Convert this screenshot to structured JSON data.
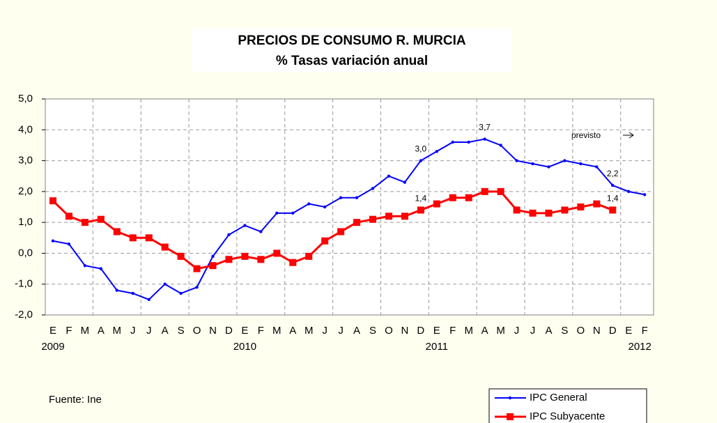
{
  "chart_data": {
    "type": "line",
    "title": "PRECIOS DE CONSUMO R. MURCIA",
    "subtitle": "% Tasas variación anual",
    "categories": [
      "E",
      "F",
      "M",
      "A",
      "M",
      "J",
      "J",
      "A",
      "S",
      "O",
      "N",
      "D",
      "E",
      "F",
      "M",
      "A",
      "M",
      "J",
      "J",
      "A",
      "S",
      "O",
      "N",
      "D",
      "E",
      "F",
      "M",
      "A",
      "M",
      "J",
      "J",
      "A",
      "S",
      "O",
      "N",
      "D",
      "E",
      "F"
    ],
    "category_years": [
      "2009",
      null,
      null,
      null,
      null,
      null,
      null,
      null,
      null,
      null,
      null,
      null,
      "2010",
      null,
      null,
      null,
      null,
      null,
      null,
      null,
      null,
      null,
      null,
      null,
      "2011",
      null,
      null,
      null,
      null,
      null,
      null,
      null,
      null,
      null,
      null,
      null,
      "2012",
      null
    ],
    "series": [
      {
        "name": "IPC General",
        "color": "#0000ff",
        "marker": "dot",
        "values": [
          0.4,
          0.3,
          -0.4,
          -0.5,
          -1.2,
          -1.3,
          -1.5,
          -1.0,
          -1.3,
          -1.1,
          -0.1,
          0.6,
          0.9,
          0.7,
          1.3,
          1.3,
          1.6,
          1.5,
          1.8,
          1.8,
          2.1,
          2.5,
          2.3,
          3.0,
          3.3,
          3.6,
          3.6,
          3.7,
          3.5,
          3.0,
          2.9,
          2.8,
          3.0,
          2.9,
          2.8,
          2.2,
          2.0,
          1.9
        ],
        "value_labels": [
          null,
          null,
          null,
          null,
          null,
          null,
          null,
          null,
          null,
          null,
          null,
          null,
          null,
          null,
          null,
          null,
          null,
          null,
          null,
          null,
          null,
          null,
          null,
          "3,0",
          null,
          null,
          null,
          "3,7",
          null,
          null,
          null,
          null,
          null,
          null,
          null,
          "2,2",
          null,
          null
        ]
      },
      {
        "name": "IPC Subyacente",
        "color": "#ff0000",
        "marker": "square",
        "values": [
          1.7,
          1.2,
          1.0,
          1.1,
          0.7,
          0.5,
          0.5,
          0.2,
          -0.1,
          -0.5,
          -0.4,
          -0.2,
          -0.1,
          -0.2,
          0.0,
          -0.3,
          -0.1,
          0.4,
          0.7,
          1.0,
          1.1,
          1.2,
          1.2,
          1.4,
          1.6,
          1.8,
          1.8,
          2.0,
          2.0,
          1.4,
          1.3,
          1.3,
          1.4,
          1.5,
          1.6,
          1.4,
          null,
          null
        ],
        "value_labels": [
          null,
          null,
          null,
          null,
          null,
          null,
          null,
          null,
          null,
          null,
          null,
          null,
          null,
          null,
          null,
          null,
          null,
          null,
          null,
          null,
          null,
          null,
          null,
          "1,4",
          null,
          null,
          null,
          null,
          null,
          null,
          null,
          null,
          null,
          null,
          null,
          "1,4",
          null,
          null
        ]
      }
    ],
    "annotation": "previsto",
    "source": "Fuente: Ine",
    "ylim": [
      -2,
      5
    ],
    "yticks": [
      {
        "value": -2,
        "label": "-2,0"
      },
      {
        "value": -1,
        "label": "-1,0"
      },
      {
        "value": 0,
        "label": "0,0"
      },
      {
        "value": 1,
        "label": "1,0"
      },
      {
        "value": 2,
        "label": "2,0"
      },
      {
        "value": 3,
        "label": "3,0"
      },
      {
        "value": 4,
        "label": "4,0"
      },
      {
        "value": 5,
        "label": "5,0"
      }
    ],
    "grid": true
  }
}
